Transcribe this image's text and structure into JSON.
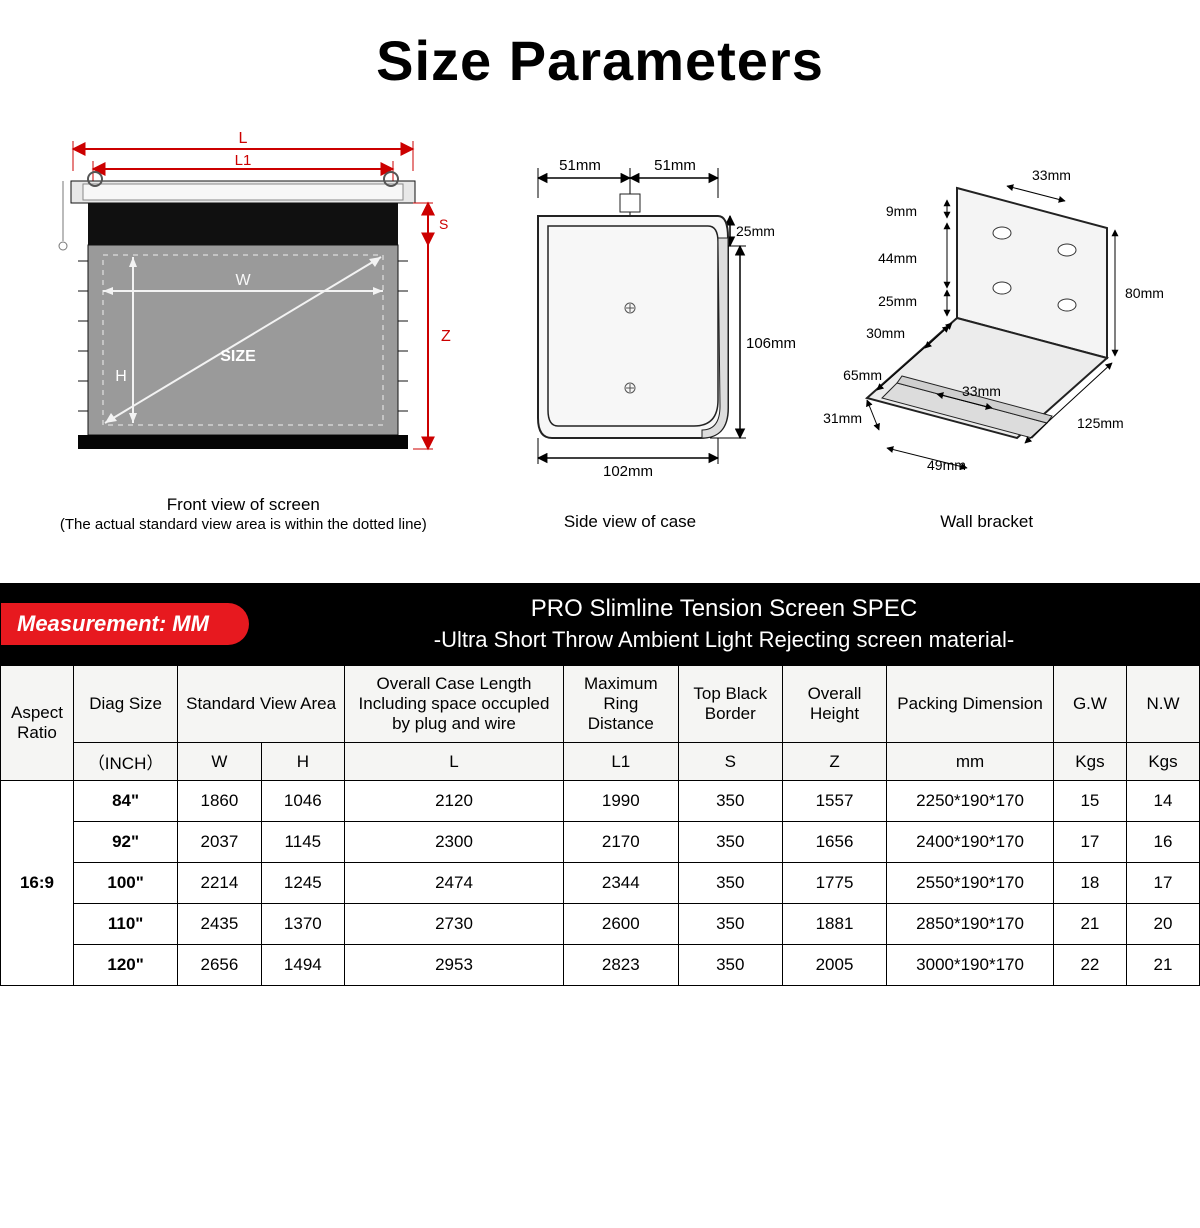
{
  "title": "Size Parameters",
  "diagrams": {
    "front": {
      "caption": "Front view of screen",
      "subcaption": "(The actual standard view area is within the dotted line)",
      "labels": {
        "L": "L",
        "L1": "L1",
        "S": "S",
        "Z": "Z",
        "W": "W",
        "H": "H",
        "SIZE": "SIZE"
      },
      "colors": {
        "dim": "#cc0000",
        "case": "#d9d9d9",
        "screen": "#9a9a9a",
        "border": "#111"
      }
    },
    "side": {
      "caption": "Side view of case",
      "dims": {
        "top_left": "51mm",
        "top_right": "51mm",
        "drop": "25mm",
        "height": "106mm",
        "bottom": "102mm"
      },
      "colors": {
        "dim": "#000",
        "fill": "#f2f2f2",
        "stroke": "#222"
      }
    },
    "bracket": {
      "caption": "Wall bracket",
      "dims": {
        "a": "33mm",
        "b": "9mm",
        "c": "44mm",
        "d": "25mm",
        "e": "30mm",
        "f": "65mm",
        "g": "33mm",
        "h": "31mm",
        "i": "49mm",
        "j": "125mm",
        "k": "80mm"
      },
      "colors": {
        "stroke": "#222",
        "fill": "#efefef"
      }
    }
  },
  "banner": {
    "badge": "Measurement: MM",
    "line1": "PRO Slimline Tension Screen SPEC",
    "line2": "-Ultra Short Throw Ambient Light Rejecting screen material-"
  },
  "table": {
    "headers": {
      "aspect": "Aspect Ratio",
      "diag": "Diag Size",
      "view": "Standard View Area",
      "case": "Overall Case Length Including space occupled by plug and wire",
      "ring": "Maximum Ring Distance",
      "top": "Top Black Border",
      "oh": "Overall Height",
      "pack": "Packing Dimension",
      "gw": "G.W",
      "nw": "N.W"
    },
    "subheaders": {
      "diag": "（INCH）",
      "w": "W",
      "h": "H",
      "l": "L",
      "l1": "L1",
      "s": "S",
      "z": "Z",
      "pack": "mm",
      "gw": "Kgs",
      "nw": "Kgs"
    },
    "aspect": "16:9",
    "rows": [
      {
        "diag": "84\"",
        "w": "1860",
        "h": "1046",
        "l": "2120",
        "l1": "1990",
        "s": "350",
        "z": "1557",
        "pack": "2250*190*170",
        "gw": "15",
        "nw": "14"
      },
      {
        "diag": "92\"",
        "w": "2037",
        "h": "1145",
        "l": "2300",
        "l1": "2170",
        "s": "350",
        "z": "1656",
        "pack": "2400*190*170",
        "gw": "17",
        "nw": "16"
      },
      {
        "diag": "100\"",
        "w": "2214",
        "h": "1245",
        "l": "2474",
        "l1": "2344",
        "s": "350",
        "z": "1775",
        "pack": "2550*190*170",
        "gw": "18",
        "nw": "17"
      },
      {
        "diag": "110\"",
        "w": "2435",
        "h": "1370",
        "l": "2730",
        "l1": "2600",
        "s": "350",
        "z": "1881",
        "pack": "2850*190*170",
        "gw": "21",
        "nw": "20"
      },
      {
        "diag": "120\"",
        "w": "2656",
        "h": "1494",
        "l": "2953",
        "l1": "2823",
        "s": "350",
        "z": "2005",
        "pack": "3000*190*170",
        "gw": "22",
        "nw": "21"
      }
    ]
  }
}
